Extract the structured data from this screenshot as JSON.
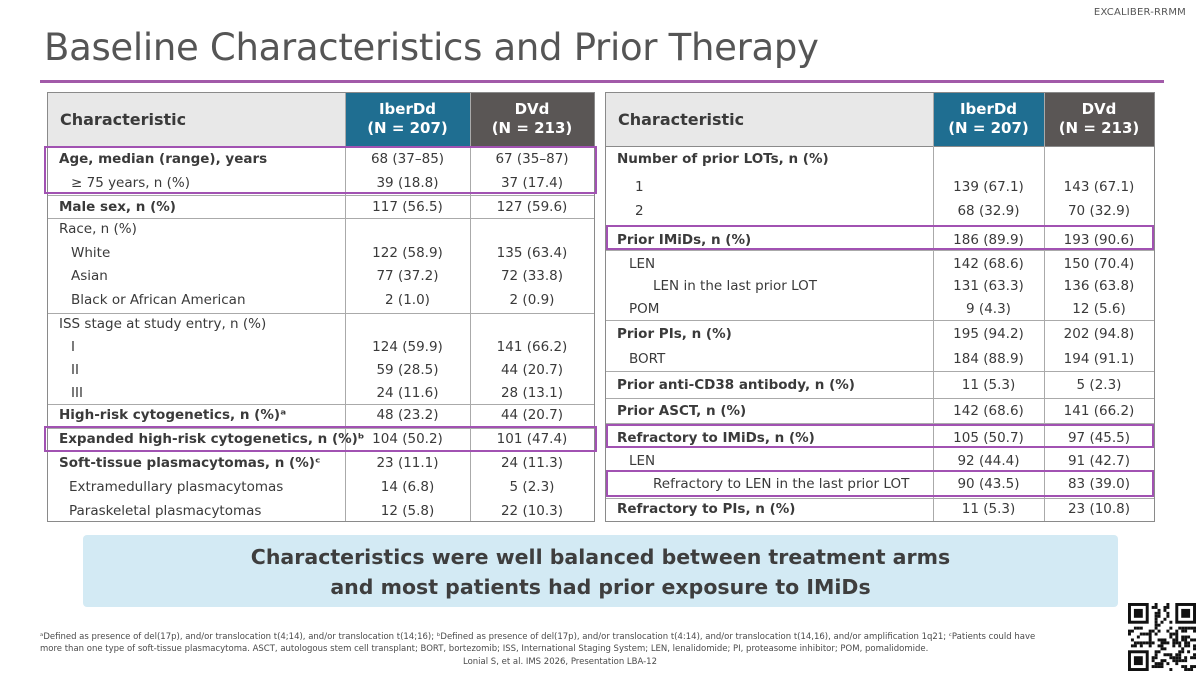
{
  "study_tag": "EXCALIBER-RRMM",
  "title": "Baseline Characteristics and Prior Therapy",
  "headers": {
    "characteristic": "Characteristic",
    "arm1_name": "IberDd",
    "arm1_n": "(N = 207)",
    "arm2_name": "DVd",
    "arm2_n": "(N = 213)"
  },
  "left_rows": [
    {
      "label": "Age, median (range), years",
      "bold": true,
      "a": "68 (37–85)",
      "b": "67 (35–87)"
    },
    {
      "label": "≥ 75 years, n (%)",
      "bold": false,
      "a": "39 (18.8)",
      "b": "37 (17.4)"
    },
    {
      "label": "Male sex, n (%)",
      "bold": true,
      "a": "117 (56.5)",
      "b": "127 (59.6)"
    },
    {
      "label": "Race, n (%)",
      "bold": false,
      "a": "",
      "b": ""
    },
    {
      "label": "White",
      "bold": false,
      "a": "122 (58.9)",
      "b": "135 (63.4)"
    },
    {
      "label": "Asian",
      "bold": false,
      "a": "77 (37.2)",
      "b": "72 (33.8)"
    },
    {
      "label": "Black or African American",
      "bold": false,
      "a": "2 (1.0)",
      "b": "2 (0.9)"
    },
    {
      "label": "ISS stage at study entry, n (%)",
      "bold": false,
      "a": "",
      "b": ""
    },
    {
      "label": "I",
      "bold": false,
      "a": "124 (59.9)",
      "b": "141 (66.2)"
    },
    {
      "label": "II",
      "bold": false,
      "a": "59 (28.5)",
      "b": "44 (20.7)"
    },
    {
      "label": "III",
      "bold": false,
      "a": "24 (11.6)",
      "b": "28 (13.1)"
    },
    {
      "label": "High-risk cytogenetics, n (%)ᵃ",
      "bold": true,
      "a": "48 (23.2)",
      "b": "44 (20.7)"
    },
    {
      "label": "Expanded high-risk cytogenetics, n (%)ᵇ",
      "bold": true,
      "a": "104 (50.2)",
      "b": "101 (47.4)"
    },
    {
      "label": "Soft-tissue plasmacytomas, n (%)ᶜ",
      "bold": true,
      "a": "23 (11.1)",
      "b": "24 (11.3)"
    },
    {
      "label": "Extramedullary plasmacytomas",
      "bold": false,
      "a": "14 (6.8)",
      "b": "5 (2.3)"
    },
    {
      "label": "Paraskeletal plasmacytomas",
      "bold": false,
      "a": "12 (5.8)",
      "b": "22 (10.3)"
    }
  ],
  "right_rows": [
    {
      "label": "Number of prior LOTs, n (%)",
      "bold": true,
      "a": "",
      "b": ""
    },
    {
      "label": "1",
      "bold": false,
      "a": "139 (67.1)",
      "b": "143 (67.1)"
    },
    {
      "label": "2",
      "bold": false,
      "a": "68 (32.9)",
      "b": "70 (32.9)"
    },
    {
      "label": "Prior IMiDs, n (%)",
      "bold": true,
      "a": "186 (89.9)",
      "b": "193 (90.6)"
    },
    {
      "label": "LEN",
      "bold": false,
      "a": "142 (68.6)",
      "b": "150 (70.4)"
    },
    {
      "label": "LEN in the last prior LOT",
      "bold": false,
      "a": "131 (63.3)",
      "b": "136 (63.8)"
    },
    {
      "label": "POM",
      "bold": false,
      "a": "9 (4.3)",
      "b": "12 (5.6)"
    },
    {
      "label": "Prior PIs, n (%)",
      "bold": true,
      "a": "195 (94.2)",
      "b": "202 (94.8)"
    },
    {
      "label": "BORT",
      "bold": false,
      "a": "184 (88.9)",
      "b": "194 (91.1)"
    },
    {
      "label": "Prior anti-CD38 antibody, n (%)",
      "bold": true,
      "a": "11 (5.3)",
      "b": "5 (2.3)"
    },
    {
      "label": "Prior ASCT, n (%)",
      "bold": true,
      "a": "142 (68.6)",
      "b": "141 (66.2)"
    },
    {
      "label": "Refractory to IMiDs, n (%)",
      "bold": true,
      "a": "105 (50.7)",
      "b": "97 (45.5)"
    },
    {
      "label": "LEN",
      "bold": false,
      "a": "92 (44.4)",
      "b": "91 (42.7)"
    },
    {
      "label": "Refractory to LEN in the last prior LOT",
      "bold": false,
      "a": "90 (43.5)",
      "b": "83 (39.0)"
    },
    {
      "label": "Refractory to PIs, n (%)",
      "bold": true,
      "a": "11 (5.3)",
      "b": "23 (10.8)"
    }
  ],
  "banner": {
    "line1": "Characteristics were well balanced between treatment arms",
    "line2": "and most patients had prior exposure to IMiDs"
  },
  "footnote": {
    "line1": "ᵃDefined as presence of del(17p), and/or translocation t(4;14), and/or translocation t(14;16); ᵇDefined as presence of del(17p), and/or translocation t(4:14), and/or translocation t(14,16), and/or amplification 1q21; ᶜPatients could have",
    "line2": "more than one type of soft-tissue plasmacytoma. ASCT, autologous stem cell transplant; BORT, bortezomib; ISS, International Staging System; LEN, lenalidomide; PI, proteasome inhibitor; POM, pomalidomide."
  },
  "citation": "Lonial S, et al. IMS 2026, Presentation LBA-12",
  "colors": {
    "accent": "#a25aa9",
    "iberdd": "#1f6e91",
    "dvd": "#5a5655",
    "banner": "#d3eaf4",
    "highlight_box": "#a152b2"
  }
}
